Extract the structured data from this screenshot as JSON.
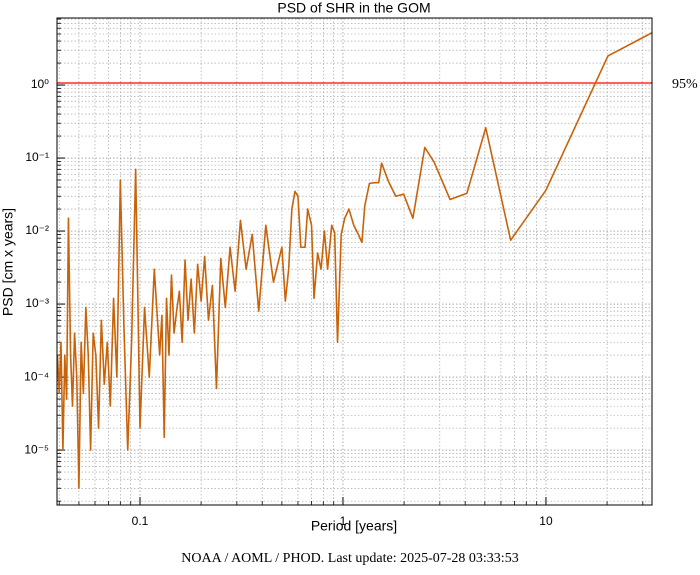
{
  "chart_data": {
    "type": "line",
    "title": "PSD of SHR in the GOM",
    "xlabel": "Period [years]",
    "ylabel": "PSD [cm x years]",
    "footer": "NOAA / AOML / PHOD. Last update: 2025-07-28 03:33:53",
    "xscale": "log",
    "yscale": "log",
    "grid": true,
    "xlim": [
      0.039,
      33.3
    ],
    "ylim": [
      1.77e-06,
      8.28
    ],
    "xticks": [
      0.1,
      1,
      10
    ],
    "minor_xticks": [
      0.04,
      0.05,
      0.06,
      0.07,
      0.08,
      0.09,
      0.2,
      0.3,
      0.4,
      0.5,
      0.6,
      0.7,
      0.8,
      0.9,
      2,
      3,
      4,
      5,
      6,
      7,
      8,
      9,
      20,
      30
    ],
    "yticks": [
      {
        "value": 1e-05,
        "label": "10⁻⁵"
      },
      {
        "value": 0.0001,
        "label": "10⁻⁴"
      },
      {
        "value": 0.001,
        "label": "10⁻³"
      },
      {
        "value": 0.01,
        "label": "10⁻²"
      },
      {
        "value": 0.1,
        "label": "10⁻¹"
      },
      {
        "value": 1,
        "label": "10⁰"
      }
    ],
    "minor_yticks": [
      2e-06,
      3e-06,
      4e-06,
      5e-06,
      6e-06,
      7e-06,
      8e-06,
      9e-06,
      2e-05,
      3e-05,
      4e-05,
      5e-05,
      6e-05,
      7e-05,
      8e-05,
      9e-05,
      0.0002,
      0.0003,
      0.0004,
      0.0005,
      0.0006,
      0.0007,
      0.0008,
      0.0009,
      0.002,
      0.003,
      0.004,
      0.005,
      0.006,
      0.007,
      0.008,
      0.009,
      0.02,
      0.03,
      0.04,
      0.05,
      0.06,
      0.07,
      0.08,
      0.09,
      0.2,
      0.3,
      0.4,
      0.5,
      0.6,
      0.7,
      0.8,
      0.9,
      2,
      3,
      4,
      5,
      6,
      7,
      8
    ],
    "threshold": {
      "value": 1.065,
      "label": "95%",
      "color": "#ff0000"
    },
    "x": [
      33.3,
      20.2,
      9.98,
      6.7,
      5.05,
      4.08,
      3.37,
      2.81,
      2.53,
      2.21,
      1.99,
      1.82,
      1.68,
      1.55,
      1.5,
      1.43,
      1.35,
      1.28,
      1.24,
      1.19,
      1.13,
      1.07,
      1.02,
      0.98,
      0.94,
      0.91,
      0.88,
      0.84,
      0.81,
      0.78,
      0.75,
      0.72,
      0.7,
      0.67,
      0.65,
      0.62,
      0.6,
      0.58,
      0.56,
      0.54,
      0.52,
      0.5,
      0.4545,
      0.4167,
      0.3846,
      0.3571,
      0.3333,
      0.3125,
      0.2941,
      0.2778,
      0.2632,
      0.25,
      0.2381,
      0.2273,
      0.2174,
      0.2083,
      0.2,
      0.1923,
      0.1852,
      0.1786,
      0.1724,
      0.1667,
      0.1613,
      0.1563,
      0.1515,
      0.1471,
      0.1429,
      0.1389,
      0.1351,
      0.1316,
      0.1282,
      0.125,
      0.1176,
      0.1111,
      0.1053,
      0.1,
      0.0952,
      0.0909,
      0.087,
      0.0833,
      0.08,
      0.0769,
      0.0741,
      0.0714,
      0.069,
      0.0667,
      0.0645,
      0.0625,
      0.0606,
      0.0588,
      0.0571,
      0.0556,
      0.0541,
      0.0526,
      0.0513,
      0.05,
      0.0488,
      0.0476,
      0.0465,
      0.0455,
      0.0444,
      0.0435,
      0.0426,
      0.0417,
      0.0408,
      0.04,
      0.0392
    ],
    "series": [
      {
        "name": "PSD",
        "color": "#c8630a",
        "values": [
          5.2,
          2.5,
          0.036,
          0.0075,
          0.26,
          0.033,
          0.027,
          0.088,
          0.14,
          0.015,
          0.032,
          0.03,
          0.047,
          0.085,
          0.046,
          0.046,
          0.045,
          0.022,
          0.007,
          0.009,
          0.012,
          0.02,
          0.015,
          0.009,
          0.0003,
          0.0095,
          0.012,
          0.003,
          0.01,
          0.003,
          0.005,
          0.0012,
          0.012,
          0.02,
          0.006,
          0.006,
          0.03,
          0.035,
          0.02,
          0.003,
          0.0011,
          0.006,
          0.002,
          0.012,
          0.0008,
          0.009,
          0.003,
          0.014,
          0.0015,
          0.006,
          0.0009,
          0.0042,
          7e-05,
          0.0018,
          0.0006,
          0.0045,
          0.0011,
          0.0035,
          0.0004,
          0.0022,
          0.0006,
          0.004,
          0.0003,
          0.0015,
          0.0008,
          0.0004,
          0.0025,
          0.0002,
          0.0012,
          1.5e-05,
          0.0007,
          0.0002,
          0.003,
          0.0001,
          0.0009,
          2e-05,
          0.07,
          0.0003,
          1e-05,
          0.0005,
          0.05,
          0.0001,
          0.0012,
          4e-05,
          0.0003,
          8e-05,
          0.0006,
          2e-05,
          0.0002,
          0.0004,
          1e-05,
          0.0002,
          0.0009,
          6e-05,
          0.0003,
          3e-06,
          0.0001,
          0.0004,
          4e-05,
          0.0002,
          0.015,
          5e-05,
          0.0002,
          1e-05,
          0.0003,
          6e-05,
          0.0002
        ]
      }
    ]
  }
}
